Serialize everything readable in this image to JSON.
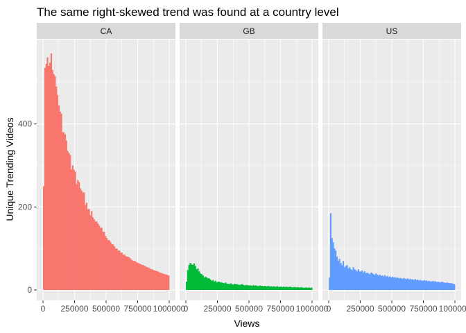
{
  "chart_data": {
    "type": "bar",
    "title": "The same right-skewed trend was found at a country level",
    "xlabel": "Views",
    "ylabel": "Unique Trending Videos",
    "xlim": [
      0,
      1000000
    ],
    "ylim": [
      0,
      600
    ],
    "x_ticks": [
      0,
      250000,
      500000,
      750000,
      1000000
    ],
    "x_tick_labels": [
      "0",
      "250000",
      "500000",
      "750000",
      "1000000"
    ],
    "y_ticks": [
      0,
      200,
      400
    ],
    "y_tick_labels": [
      "0",
      "200",
      "400"
    ],
    "bin_width": 10000,
    "colors": {
      "CA": "#F8766D",
      "GB": "#00BA38",
      "US": "#619CFF"
    },
    "grid": true,
    "legend": "none",
    "series": [
      {
        "name": "CA",
        "values": [
          250,
          535,
          545,
          560,
          540,
          548,
          570,
          530,
          520,
          515,
          490,
          470,
          445,
          430,
          425,
          380,
          380,
          375,
          360,
          335,
          330,
          325,
          290,
          300,
          290,
          285,
          255,
          265,
          260,
          245,
          240,
          235,
          235,
          205,
          210,
          195,
          195,
          180,
          190,
          175,
          170,
          165,
          165,
          160,
          155,
          150,
          150,
          140,
          140,
          130,
          125,
          120,
          120,
          115,
          110,
          110,
          105,
          100,
          100,
          95,
          95,
          90,
          90,
          85,
          85,
          82,
          80,
          80,
          78,
          75,
          72,
          70,
          70,
          68,
          66,
          65,
          63,
          62,
          60,
          60,
          58,
          56,
          55,
          54,
          52,
          50,
          50,
          48,
          47,
          46,
          45,
          44,
          42,
          41,
          40,
          39,
          38,
          37,
          36,
          35
        ]
      },
      {
        "name": "GB",
        "values": [
          20,
          48,
          60,
          65,
          62,
          60,
          64,
          58,
          50,
          52,
          45,
          40,
          38,
          35,
          30,
          32,
          30,
          28,
          28,
          25,
          22,
          24,
          20,
          22,
          18,
          20,
          20,
          18,
          18,
          17,
          16,
          18,
          15,
          15,
          14,
          16,
          14,
          13,
          15,
          14,
          14,
          13,
          12,
          13,
          14,
          12,
          11,
          12,
          12,
          11,
          11,
          11,
          10,
          12,
          10,
          11,
          10,
          9,
          11,
          10,
          10,
          9,
          10,
          9,
          9,
          10,
          8,
          9,
          8,
          9,
          8,
          8,
          9,
          7,
          8,
          8,
          7,
          8,
          7,
          8,
          7,
          7,
          8,
          7,
          6,
          7,
          7,
          6,
          7,
          6,
          6,
          7,
          6,
          5,
          6,
          6,
          5,
          6,
          5,
          6
        ]
      },
      {
        "name": "US",
        "values": [
          30,
          185,
          125,
          115,
          100,
          95,
          80,
          70,
          75,
          65,
          60,
          70,
          55,
          58,
          60,
          52,
          55,
          50,
          48,
          55,
          50,
          48,
          45,
          50,
          45,
          44,
          47,
          42,
          45,
          40,
          42,
          40,
          38,
          42,
          40,
          38,
          36,
          40,
          37,
          35,
          37,
          34,
          35,
          33,
          36,
          32,
          34,
          31,
          33,
          30,
          32,
          30,
          31,
          29,
          30,
          28,
          29,
          28,
          27,
          29,
          27,
          26,
          28,
          25,
          27,
          25,
          26,
          24,
          26,
          24,
          25,
          23,
          24,
          23,
          22,
          24,
          22,
          23,
          21,
          22,
          21,
          20,
          22,
          20,
          21,
          19,
          20,
          19,
          18,
          20,
          19,
          18,
          17,
          18,
          17,
          16,
          17,
          16,
          15,
          14
        ]
      }
    ]
  }
}
